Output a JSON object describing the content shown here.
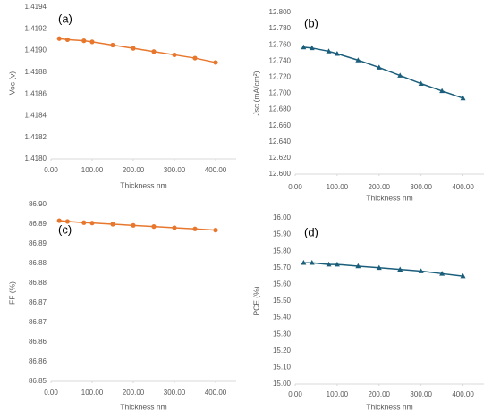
{
  "chart_data": [
    {
      "type": "line",
      "panel_label": "(a)",
      "x_label": "Thickness nm",
      "y_label": "Voc (v)",
      "x": [
        20,
        40,
        80,
        100,
        150,
        200,
        250,
        300,
        350,
        400
      ],
      "series": [
        {
          "color": "#e8772e",
          "marker": "circle",
          "values": [
            1.41911,
            1.4191,
            1.41909,
            1.41908,
            1.41905,
            1.41902,
            1.41899,
            1.41896,
            1.41893,
            1.41889
          ]
        }
      ],
      "xlim": [
        0,
        450
      ],
      "xticks": [
        {
          "value": 0,
          "label": "0.00"
        },
        {
          "value": 100,
          "label": "100.00"
        },
        {
          "value": 200,
          "label": "200.00"
        },
        {
          "value": 300,
          "label": "300.00"
        },
        {
          "value": 400,
          "label": "400.00"
        }
      ],
      "ylim": [
        1.418,
        1.4194
      ],
      "yticks": [
        {
          "value": 1.418,
          "label": "1.4180"
        },
        1.4182,
        1.4184,
        1.4186,
        1.4188,
        {
          "value": 1.419,
          "label": "1.4190"
        },
        1.4192,
        1.4194
      ]
    },
    {
      "type": "line",
      "panel_label": "(b)",
      "x_label": "Thickness nm",
      "y_label": "Jsc (mA/cm²)",
      "x": [
        20,
        40,
        80,
        100,
        150,
        200,
        250,
        300,
        350,
        400
      ],
      "series": [
        {
          "color": "#1b5e7b",
          "marker": "triangle",
          "values": [
            12.757,
            12.756,
            12.752,
            12.749,
            12.741,
            12.732,
            12.722,
            12.712,
            12.703,
            12.694
          ]
        }
      ],
      "xlim": [
        0,
        450
      ],
      "xticks": [
        {
          "value": 0,
          "label": "0.00"
        },
        {
          "value": 100,
          "label": "100.00"
        },
        {
          "value": 200,
          "label": "200.00"
        },
        {
          "value": 300,
          "label": "300.00"
        },
        {
          "value": 400,
          "label": "400.00"
        }
      ],
      "ylim": [
        12.6,
        12.8
      ],
      "yticks": [
        {
          "value": 12.6,
          "label": "12.600"
        },
        {
          "value": 12.62,
          "label": "12.620"
        },
        {
          "value": 12.64,
          "label": "12.640"
        },
        {
          "value": 12.66,
          "label": "12.660"
        },
        {
          "value": 12.68,
          "label": "12.680"
        },
        {
          "value": 12.7,
          "label": "12.700"
        },
        {
          "value": 12.72,
          "label": "12.720"
        },
        {
          "value": 12.74,
          "label": "12.740"
        },
        {
          "value": 12.76,
          "label": "12.760"
        },
        {
          "value": 12.78,
          "label": "12.780"
        },
        {
          "value": 12.8,
          "label": "12.800"
        }
      ]
    },
    {
      "type": "line",
      "panel_label": "(c)",
      "x_label": "Thickness nm",
      "y_label": "FF (%)",
      "x": [
        20,
        40,
        80,
        100,
        150,
        200,
        250,
        300,
        350,
        400
      ],
      "series": [
        {
          "color": "#e8772e",
          "marker": "circle",
          "values": [
            86.8954,
            86.8952,
            86.8949,
            86.8948,
            86.8945,
            86.8942,
            86.8939,
            86.8936,
            86.8933,
            86.893
          ]
        }
      ],
      "xlim": [
        0,
        450
      ],
      "xticks": [
        {
          "value": 0,
          "label": "0.00"
        },
        {
          "value": 100,
          "label": "100.00"
        },
        {
          "value": 200,
          "label": "200.00"
        },
        {
          "value": 300,
          "label": "300.00"
        },
        {
          "value": 400,
          "label": "400.00"
        }
      ],
      "ylim": [
        86.8545,
        86.8995
      ],
      "yticks": [
        {
          "value": 86.8545,
          "label": "86.85"
        },
        {
          "value": 86.8595,
          "label": "86.86"
        },
        {
          "value": 86.8645,
          "label": "86.86"
        },
        {
          "value": 86.8695,
          "label": "86.87"
        },
        {
          "value": 86.8745,
          "label": "86.87"
        },
        {
          "value": 86.8795,
          "label": "86.88"
        },
        {
          "value": 86.8845,
          "label": "86.88"
        },
        {
          "value": 86.8895,
          "label": "86.89"
        },
        {
          "value": 86.8945,
          "label": "86.89"
        },
        {
          "value": 86.8995,
          "label": "86.90"
        }
      ]
    },
    {
      "type": "line",
      "panel_label": "(d)",
      "x_label": "Thickness nm",
      "y_label": "PCE (%)",
      "x": [
        20,
        40,
        80,
        100,
        150,
        200,
        250,
        300,
        350,
        400
      ],
      "series": [
        {
          "color": "#1b5e7b",
          "marker": "triangle",
          "values": [
            15.73,
            15.73,
            15.72,
            15.72,
            15.71,
            15.7,
            15.69,
            15.68,
            15.665,
            15.65
          ]
        }
      ],
      "xlim": [
        0,
        450
      ],
      "xticks": [
        {
          "value": 0,
          "label": "0.00"
        },
        {
          "value": 100,
          "label": "100.00"
        },
        {
          "value": 200,
          "label": "200.00"
        },
        {
          "value": 300,
          "label": "300.00"
        },
        {
          "value": 400,
          "label": "400.00"
        }
      ],
      "ylim": [
        15,
        16
      ],
      "yticks": [
        {
          "value": 15,
          "label": "15.00"
        },
        {
          "value": 15.1,
          "label": "15.10"
        },
        {
          "value": 15.2,
          "label": "15.20"
        },
        {
          "value": 15.3,
          "label": "15.30"
        },
        {
          "value": 15.4,
          "label": "15.40"
        },
        {
          "value": 15.5,
          "label": "15.50"
        },
        {
          "value": 15.6,
          "label": "15.60"
        },
        {
          "value": 15.7,
          "label": "15.70"
        },
        {
          "value": 15.8,
          "label": "15.80"
        },
        {
          "value": 15.9,
          "label": "15.90"
        },
        {
          "value": 16,
          "label": "16.00"
        }
      ]
    }
  ]
}
